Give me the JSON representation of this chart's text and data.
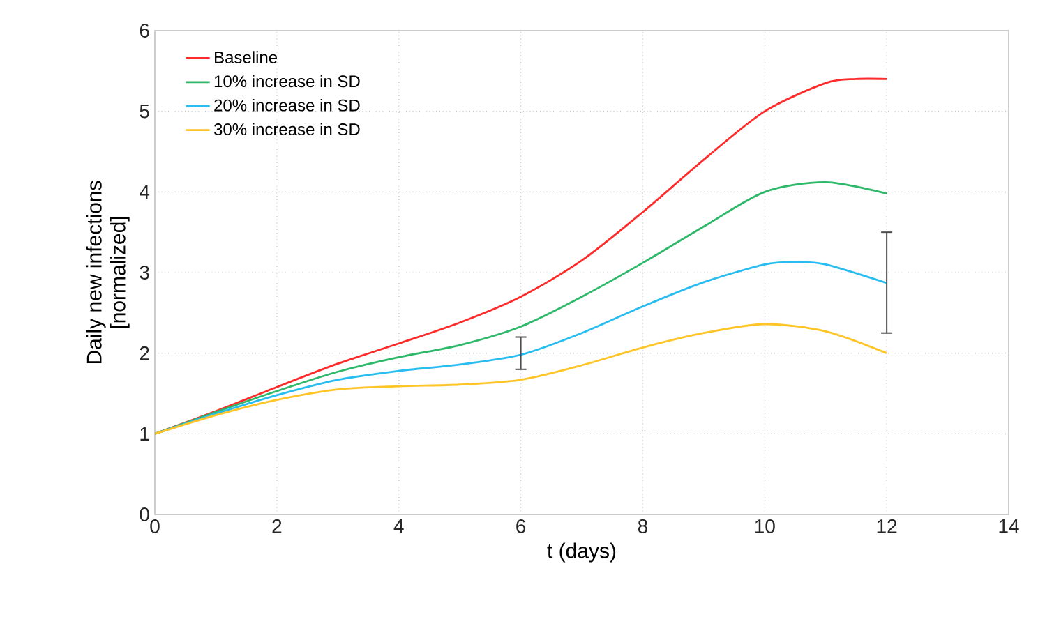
{
  "chart_data": {
    "type": "line",
    "xlabel": "t (days)",
    "ylabel": "Daily new infections\n[normalized]",
    "xlim": [
      0,
      14
    ],
    "ylim": [
      0,
      6
    ],
    "xticks": [
      0,
      2,
      4,
      6,
      8,
      10,
      12,
      14
    ],
    "yticks": [
      0,
      1,
      2,
      3,
      4,
      5,
      6
    ],
    "grid": true,
    "legend": "top left",
    "series": [
      {
        "name": "Baseline",
        "color": "#ff2a2a",
        "x": [
          0,
          1,
          2,
          3,
          4,
          5,
          6,
          7,
          8,
          9,
          10,
          11,
          11.5,
          12
        ],
        "values": [
          1,
          1.28,
          1.58,
          1.87,
          2.12,
          2.38,
          2.7,
          3.15,
          3.75,
          4.4,
          5.0,
          5.35,
          5.4,
          5.4
        ]
      },
      {
        "name": "10% increase in SD",
        "color": "#2eb86a",
        "x": [
          0,
          1,
          2,
          3,
          4,
          5,
          6,
          7,
          8,
          9,
          10,
          11,
          12
        ],
        "values": [
          1,
          1.27,
          1.53,
          1.77,
          1.95,
          2.1,
          2.33,
          2.7,
          3.12,
          3.57,
          4.0,
          4.12,
          3.98
        ]
      },
      {
        "name": "20% increase in SD",
        "color": "#28bdf0",
        "x": [
          0,
          1,
          2,
          3,
          4,
          5,
          6,
          7,
          8,
          9,
          10,
          10.5,
          11,
          12
        ],
        "values": [
          1,
          1.25,
          1.48,
          1.67,
          1.78,
          1.86,
          1.98,
          2.25,
          2.58,
          2.88,
          3.1,
          3.13,
          3.1,
          2.87
        ],
        "errors": [
          null,
          null,
          null,
          null,
          null,
          null,
          [
            1.8,
            2.2
          ],
          null,
          null,
          null,
          null,
          null,
          null,
          [
            2.25,
            3.5
          ]
        ]
      },
      {
        "name": "30% increase in SD",
        "color": "#ffc425",
        "x": [
          0,
          1,
          2,
          3,
          4,
          5,
          6,
          7,
          8,
          9,
          10,
          11,
          12
        ],
        "values": [
          1,
          1.23,
          1.42,
          1.55,
          1.59,
          1.61,
          1.67,
          1.85,
          2.07,
          2.25,
          2.36,
          2.27,
          2.0
        ]
      }
    ]
  }
}
